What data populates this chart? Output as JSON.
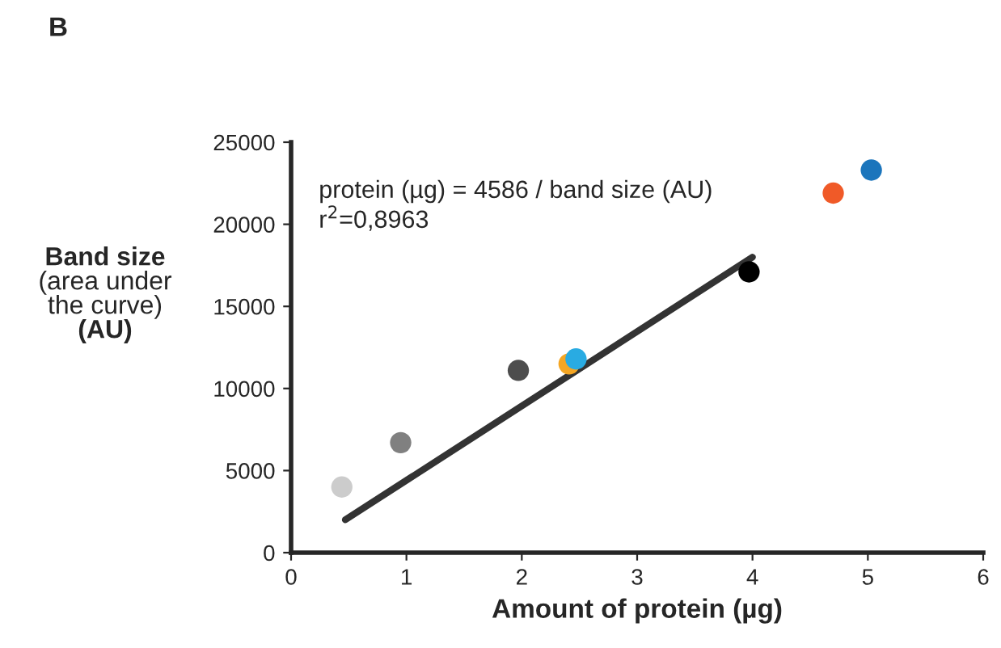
{
  "chart_data": {
    "type": "scatter",
    "title": "B",
    "xlabel": "Amount of protein (µg)",
    "ylabel": "Band size\n(area under\nthe curve)\n(AU)",
    "series": [
      {
        "marker": "circle",
        "x": [
          0.44,
          0.95,
          1.97,
          2.41,
          2.47,
          3.97,
          4.7,
          5.03
        ],
        "values": [
          4000,
          6700,
          11100,
          11500,
          11800,
          17100,
          21900,
          23300
        ],
        "colors": [
          "#cccccc",
          "#808080",
          "#4d4d4d",
          "#f5a623",
          "#29abe2",
          "#000000",
          "#f05a28",
          "#1b75bc"
        ]
      },
      {
        "type": "line",
        "marker": "none",
        "x": [
          0.47,
          4.0
        ],
        "values": [
          2000,
          18000
        ],
        "color": "#333333"
      }
    ],
    "annotations": [
      "protein (µg) = 4586 / band size (AU)",
      "r$^{2}$=0,8963"
    ],
    "xlim": [
      0,
      6
    ],
    "xticks": [
      0,
      1,
      2,
      3,
      4,
      5,
      6
    ],
    "ylim": [
      0,
      25000
    ],
    "yticks": [
      0,
      5000,
      10000,
      15000,
      20000,
      25000
    ],
    "grid": false,
    "legend": false
  }
}
